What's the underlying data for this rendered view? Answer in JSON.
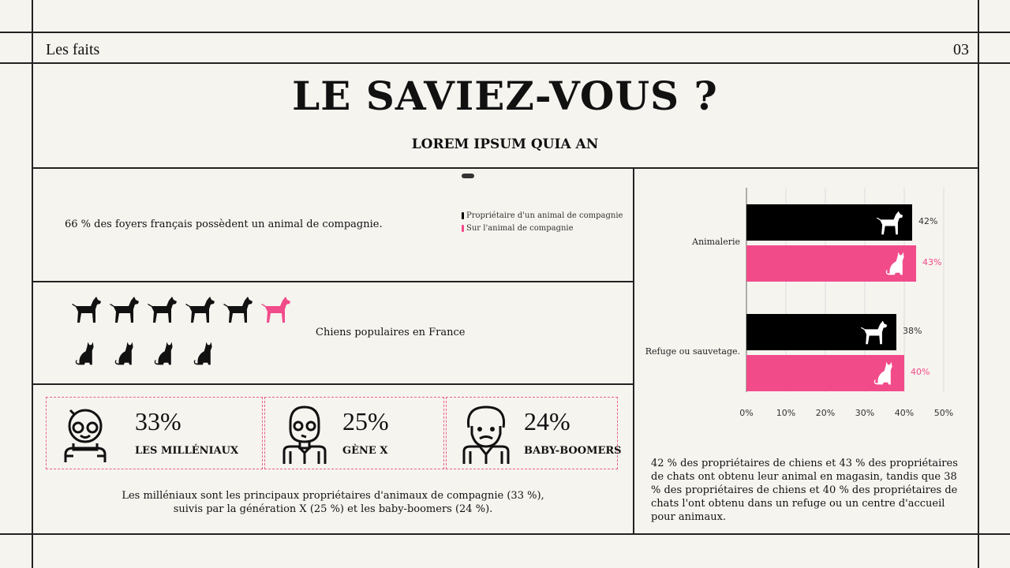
{
  "header": {
    "section": "Les faits",
    "page_number": "03",
    "title": "LE SAVIEZ-VOUS ?",
    "subtitle": "LOREM IPSUM QUIA AN"
  },
  "fact1": {
    "text": "66 % des foyers français possèdent un animal de compagnie.",
    "legend": [
      {
        "label": "Propriétaire d'un animal de compagnie",
        "color": "#000000"
      },
      {
        "label": "Sur l'animal de compagnie",
        "color": "#f14b8a"
      }
    ]
  },
  "popular": {
    "text": "Chiens populaires en France",
    "dogs": 6,
    "highlighted_dog": 6,
    "cats": 4
  },
  "generations": [
    {
      "percent": "33%",
      "label": "LES MILLÉNIAUX",
      "icon": "millennial-avatar-icon"
    },
    {
      "percent": "25%",
      "label": "GÈNE X",
      "icon": "gen-x-avatar-icon"
    },
    {
      "percent": "24%",
      "label": "BABY-BOOMERS",
      "icon": "boomer-avatar-icon"
    }
  ],
  "generations_text": "Les milléniaux sont les principaux propriétaires d'animaux de compagnie (33 %),",
  "generations_text2": "suivis par la génération X (25 %) et les baby-boomers (24 %).",
  "chart_text": "42 % des propriétaires de chiens et 43 % des propriétaires de chats ont obtenu leur animal en magasin, tandis que 38 % des propriétaires de chiens et 40 % des propriétaires de chats l'ont obtenu dans un refuge ou un centre d'accueil pour animaux.",
  "colors": {
    "accent": "#f14b8a",
    "dark": "#000000",
    "background": "#f6f4ef"
  },
  "chart_data": {
    "type": "bar",
    "orientation": "horizontal",
    "categories": [
      "Animalerie",
      "Refuge ou sauvetage."
    ],
    "series": [
      {
        "icon": "dog-icon",
        "color": "#000000",
        "values": [
          42,
          38
        ],
        "labels": [
          "42%",
          "38%"
        ]
      },
      {
        "icon": "cat-icon",
        "color": "#f14b8a",
        "values": [
          43,
          40
        ],
        "labels": [
          "43%",
          "40%"
        ]
      }
    ],
    "xlim": [
      0,
      50
    ],
    "ticks": [
      "0%",
      "10%",
      "20%",
      "30%",
      "40%",
      "50%"
    ],
    "grid": true
  }
}
